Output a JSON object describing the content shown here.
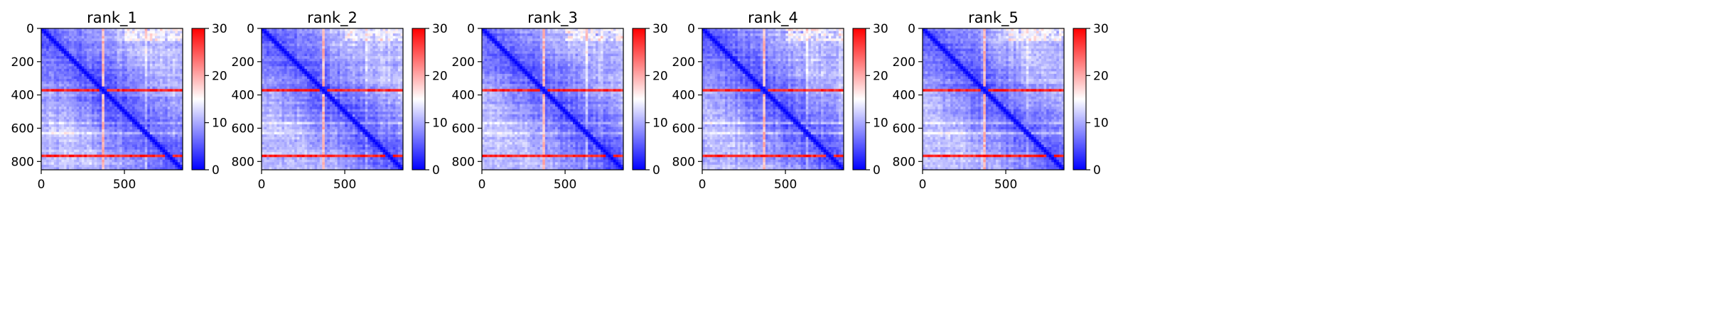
{
  "figure": {
    "background": "#ffffff"
  },
  "colormap": {
    "name": "bwr",
    "low": "#0000ff",
    "mid": "#ffffff",
    "high": "#ff0000"
  },
  "chart_data": [
    {
      "type": "heatmap",
      "title": "rank_1",
      "x_ticks": [
        0,
        500
      ],
      "y_ticks": [
        0,
        200,
        400,
        600,
        800
      ],
      "xlim": [
        0,
        850
      ],
      "ylim": [
        850,
        0
      ],
      "colorbar": {
        "ticks": [
          0,
          10,
          20,
          30
        ],
        "range": [
          0,
          30
        ]
      },
      "hot_rows": [
        370,
        765
      ],
      "hot_cols": [
        370
      ],
      "diagonal_value": 0
    },
    {
      "type": "heatmap",
      "title": "rank_2",
      "x_ticks": [
        0,
        500
      ],
      "y_ticks": [
        0,
        200,
        400,
        600,
        800
      ],
      "xlim": [
        0,
        850
      ],
      "ylim": [
        850,
        0
      ],
      "colorbar": {
        "ticks": [
          0,
          10,
          20,
          30
        ],
        "range": [
          0,
          30
        ]
      },
      "hot_rows": [
        370,
        765
      ],
      "hot_cols": [
        370
      ],
      "diagonal_value": 0
    },
    {
      "type": "heatmap",
      "title": "rank_3",
      "x_ticks": [
        0,
        500
      ],
      "y_ticks": [
        0,
        200,
        400,
        600,
        800
      ],
      "xlim": [
        0,
        850
      ],
      "ylim": [
        850,
        0
      ],
      "colorbar": {
        "ticks": [
          0,
          10,
          20,
          30
        ],
        "range": [
          0,
          30
        ]
      },
      "hot_rows": [
        370,
        765
      ],
      "hot_cols": [
        370
      ],
      "diagonal_value": 0
    },
    {
      "type": "heatmap",
      "title": "rank_4",
      "x_ticks": [
        0,
        500
      ],
      "y_ticks": [
        0,
        200,
        400,
        600,
        800
      ],
      "xlim": [
        0,
        850
      ],
      "ylim": [
        850,
        0
      ],
      "colorbar": {
        "ticks": [
          0,
          10,
          20,
          30
        ],
        "range": [
          0,
          30
        ]
      },
      "hot_rows": [
        370,
        765
      ],
      "hot_cols": [
        370
      ],
      "diagonal_value": 0
    },
    {
      "type": "heatmap",
      "title": "rank_5",
      "x_ticks": [
        0,
        500
      ],
      "y_ticks": [
        0,
        200,
        400,
        600,
        800
      ],
      "xlim": [
        0,
        850
      ],
      "ylim": [
        850,
        0
      ],
      "colorbar": {
        "ticks": [
          0,
          10,
          20,
          30
        ],
        "range": [
          0,
          30
        ]
      },
      "hot_rows": [
        370,
        765
      ],
      "hot_cols": [
        370
      ],
      "diagonal_value": 0
    }
  ]
}
